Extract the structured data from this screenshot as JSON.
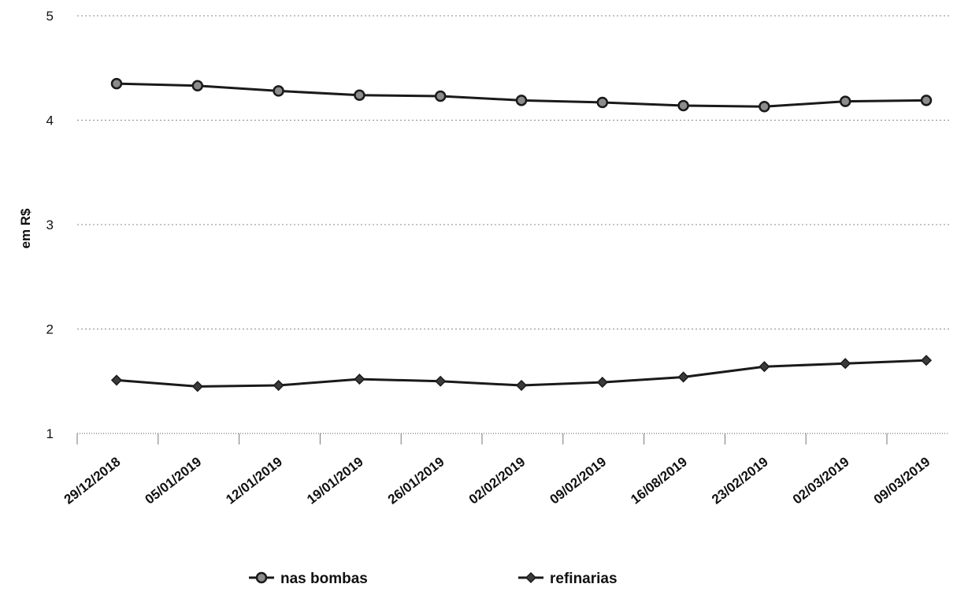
{
  "chart_data": {
    "type": "line",
    "title": "",
    "xlabel": "",
    "ylabel": "em R$",
    "ylim": [
      1,
      5
    ],
    "yticks": [
      "1",
      "2",
      "3",
      "4",
      "5"
    ],
    "grid": true,
    "legend_position": "bottom",
    "categories": [
      "29/12/2018",
      "05/01/2019",
      "12/01/2019",
      "19/01/2019",
      "26/01/2019",
      "02/02/2019",
      "09/02/2019",
      "16/08/2019",
      "23/02/2019",
      "02/03/2019",
      "09/03/2019"
    ],
    "series": [
      {
        "name": "nas bombas",
        "marker": "circle",
        "values": [
          4.35,
          4.33,
          4.28,
          4.24,
          4.23,
          4.19,
          4.17,
          4.14,
          4.13,
          4.18,
          4.19
        ]
      },
      {
        "name": "refinarias",
        "marker": "diamond",
        "values": [
          1.51,
          1.45,
          1.46,
          1.52,
          1.5,
          1.46,
          1.49,
          1.54,
          1.64,
          1.67,
          1.7
        ]
      }
    ]
  }
}
